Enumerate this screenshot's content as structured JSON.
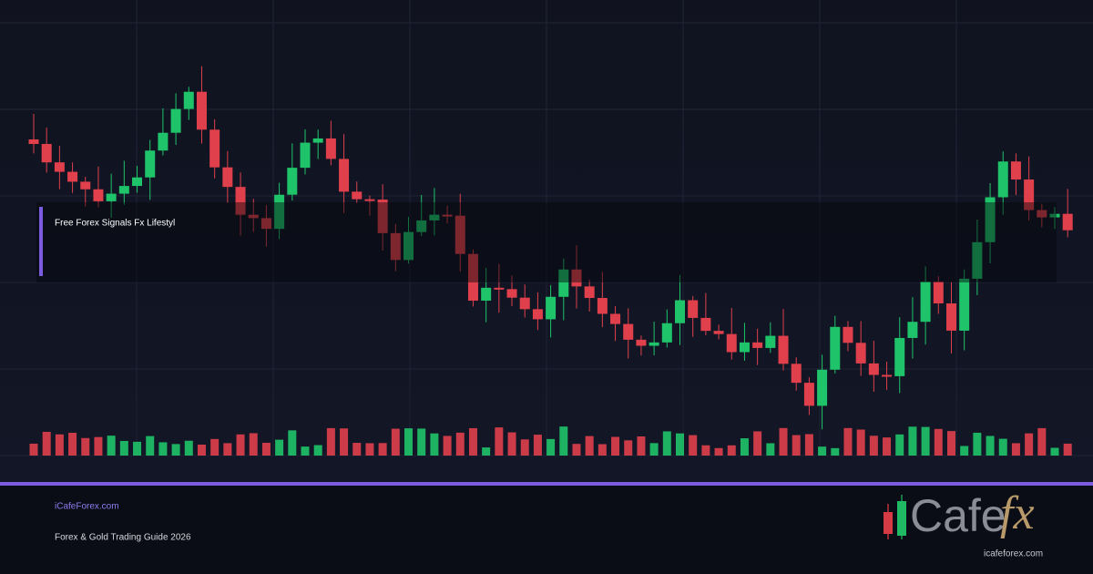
{
  "banner": {
    "title": "Free Forex Signals Fx Lifestyl"
  },
  "footer": {
    "site": "iCafeForex.com",
    "subtitle": "Forex & Gold Trading Guide 2026"
  },
  "logo": {
    "wordmark": "Cafe",
    "accent": "fx",
    "url": "icafeforex.com"
  }
}
